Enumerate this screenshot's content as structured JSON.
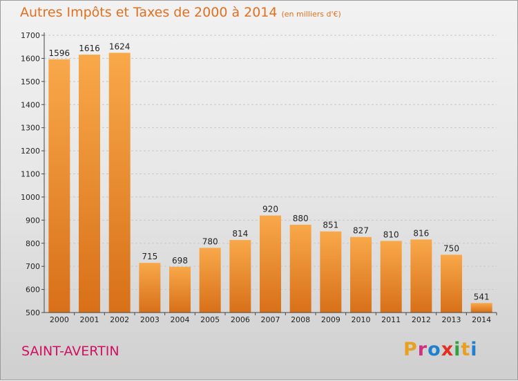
{
  "header": {
    "title": "Autres Impôts et Taxes de 2000 à 2014",
    "unit": "(en milliers d'€)"
  },
  "footer": {
    "commune": "SAINT-AVERTIN",
    "logo_letters": [
      "P",
      "r",
      "o",
      "x",
      "i",
      "t",
      "i"
    ],
    "logo_colors": [
      "#e8a020",
      "#d03080",
      "#2080d0",
      "#e03020",
      "#30a040",
      "#e8a020",
      "#2080d0"
    ]
  },
  "colors": {
    "title": "#e07020",
    "commune": "#d01060",
    "bar_light": "#f8a84a",
    "bar_dark": "#d87018"
  },
  "chart_data": {
    "type": "bar",
    "title": "Autres Impôts et Taxes de 2000 à 2014",
    "subtitle": "(en milliers d'€)",
    "categories": [
      "2000",
      "2001",
      "2002",
      "2003",
      "2004",
      "2005",
      "2006",
      "2007",
      "2008",
      "2009",
      "2010",
      "2011",
      "2012",
      "2013",
      "2014"
    ],
    "values": [
      1596,
      1616,
      1624,
      715,
      698,
      780,
      814,
      920,
      880,
      851,
      827,
      810,
      816,
      750,
      541
    ],
    "ylim": [
      500,
      1700
    ],
    "yticks": [
      500,
      600,
      700,
      800,
      900,
      1000,
      1100,
      1200,
      1300,
      1400,
      1500,
      1600,
      1700
    ],
    "grid": true,
    "data_labels": true
  }
}
